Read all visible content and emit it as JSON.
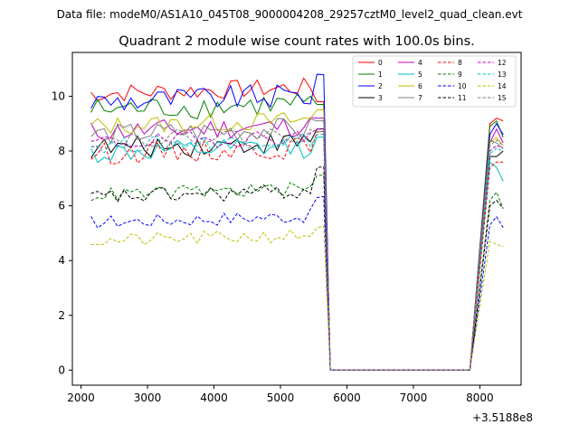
{
  "suptitle": "Data file: modeM0/AS1A10_045T08_9000004208_29257cztM0_level2_quad_clean.evt",
  "chart_data": {
    "type": "line",
    "title": "Quadrant 2 module wise count rates with 100.0s bins.",
    "xlabel": "",
    "ylabel": "",
    "x_offset_label": "+3.5188e8",
    "xlim": [
      1870,
      8620
    ],
    "ylim": [
      -0.55,
      11.6
    ],
    "xticks": [
      2000,
      3000,
      4000,
      5000,
      6000,
      7000,
      8000
    ],
    "yticks": [
      0,
      2,
      4,
      6,
      8,
      10
    ],
    "grid": false,
    "legend_position": "top-right",
    "x": {
      "segment1": {
        "start": 2150,
        "step": 100,
        "count": 36
      },
      "gap": [
        5750,
        5850,
        5950,
        6050,
        6150,
        6250,
        6350,
        6450,
        6550,
        6650,
        6750,
        6850,
        6950,
        7050,
        7150,
        7250,
        7350,
        7450,
        7550,
        7650,
        7750,
        7850
      ],
      "segment2": [
        8150,
        8250,
        8350
      ]
    },
    "series": [
      {
        "name": "0",
        "color": "#ff0000",
        "dash": "solid",
        "level": 10.1,
        "amp": 0.35,
        "edge": 9.9,
        "end": [
          9.0,
          9.2,
          9.1
        ]
      },
      {
        "name": "1",
        "color": "#008000",
        "dash": "solid",
        "level": 9.5,
        "amp": 0.45,
        "edge": 9.8,
        "end": [
          8.9,
          9.1,
          8.5
        ]
      },
      {
        "name": "2",
        "color": "#0000ff",
        "dash": "solid",
        "level": 9.8,
        "amp": 0.45,
        "edge": 10.9,
        "end": [
          8.6,
          9.0,
          8.6
        ]
      },
      {
        "name": "3",
        "color": "#000000",
        "dash": "solid",
        "level": 8.1,
        "amp": 0.4,
        "edge": 8.9,
        "end": [
          7.8,
          7.8,
          8.0
        ]
      },
      {
        "name": "4",
        "color": "#c000c0",
        "dash": "solid",
        "level": 8.7,
        "amp": 0.4,
        "edge": 9.3,
        "end": [
          8.3,
          8.8,
          8.3
        ]
      },
      {
        "name": "5",
        "color": "#00bfbf",
        "dash": "solid",
        "level": 7.9,
        "amp": 0.4,
        "edge": 8.6,
        "end": [
          7.6,
          7.4,
          6.9
        ]
      },
      {
        "name": "6",
        "color": "#bfbf00",
        "dash": "solid",
        "level": 8.9,
        "amp": 0.35,
        "edge": 9.6,
        "end": [
          8.3,
          8.5,
          8.2
        ]
      },
      {
        "name": "7",
        "color": "#808080",
        "dash": "solid",
        "level": 8.6,
        "amp": 0.4,
        "edge": 9.2,
        "end": [
          8.4,
          8.3,
          8.1
        ]
      },
      {
        "name": "8",
        "color": "#ff0000",
        "dash": "dashed",
        "level": 7.9,
        "amp": 0.4,
        "edge": 8.8,
        "end": [
          7.4,
          7.6,
          7.6
        ]
      },
      {
        "name": "9",
        "color": "#008000",
        "dash": "dashed",
        "level": 6.4,
        "amp": 0.25,
        "edge": 7.2,
        "end": [
          6.2,
          6.5,
          5.9
        ]
      },
      {
        "name": "10",
        "color": "#0000ff",
        "dash": "dashed",
        "level": 5.4,
        "amp": 0.25,
        "edge": 6.4,
        "end": [
          5.3,
          5.6,
          5.2
        ]
      },
      {
        "name": "11",
        "color": "#000000",
        "dash": "dashed",
        "level": 6.3,
        "amp": 0.3,
        "edge": 7.5,
        "end": [
          6.0,
          6.2,
          5.9
        ]
      },
      {
        "name": "12",
        "color": "#c000c0",
        "dash": "dashed",
        "level": 8.3,
        "amp": 0.3,
        "edge": 8.9,
        "end": [
          8.0,
          8.2,
          8.1
        ]
      },
      {
        "name": "13",
        "color": "#00bfbf",
        "dash": "dashed",
        "level": 8.2,
        "amp": 0.3,
        "edge": 8.7,
        "end": [
          7.9,
          8.1,
          8.0
        ]
      },
      {
        "name": "14",
        "color": "#bfbf00",
        "dash": "dashed",
        "level": 4.7,
        "amp": 0.25,
        "edge": 5.3,
        "end": [
          4.7,
          4.6,
          4.5
        ]
      },
      {
        "name": "15",
        "color": "#808080",
        "dash": "dashed",
        "level": 8.4,
        "amp": 0.3,
        "edge": 8.8,
        "end": [
          8.2,
          8.4,
          8.2
        ]
      }
    ]
  }
}
